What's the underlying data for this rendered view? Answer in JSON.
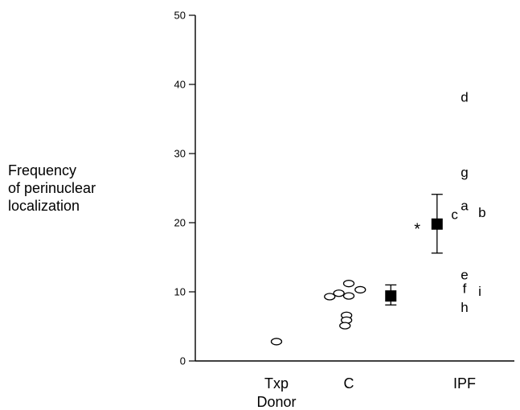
{
  "chart_data": {
    "type": "scatter",
    "ylabel_lines": [
      "Frequency",
      "of perinuclear",
      "localization"
    ],
    "ylim": [
      0,
      50
    ],
    "yticks": [
      0,
      10,
      20,
      30,
      40,
      50
    ],
    "ytick_labels": [
      "0",
      "10",
      "20",
      "30",
      "40",
      "50"
    ],
    "categories": [
      {
        "key": "txp",
        "lines": [
          "Txp",
          "Donor"
        ]
      },
      {
        "key": "c",
        "lines": [
          "C"
        ]
      },
      {
        "key": "ipf",
        "lines": [
          "IPF"
        ]
      }
    ],
    "txp_points": [
      {
        "cat": "txp",
        "offset": 0.0,
        "y": 2.8
      }
    ],
    "control_points": [
      {
        "cat": "c",
        "offset": -0.25,
        "y": 9.3
      },
      {
        "cat": "c",
        "offset": -0.13,
        "y": 9.8
      },
      {
        "cat": "c",
        "offset": 0.0,
        "y": 11.2
      },
      {
        "cat": "c",
        "offset": 0.0,
        "y": 9.4
      },
      {
        "cat": "c",
        "offset": 0.15,
        "y": 10.3
      },
      {
        "cat": "c",
        "offset": -0.03,
        "y": 6.6
      },
      {
        "cat": "c",
        "offset": -0.03,
        "y": 5.9
      },
      {
        "cat": "c",
        "offset": -0.05,
        "y": 5.1
      }
    ],
    "ipf_points": [
      {
        "label": "d",
        "offset": 0.0,
        "y": 38.2
      },
      {
        "label": "g",
        "offset": 0.0,
        "y": 27.3
      },
      {
        "label": "a",
        "offset": 0.0,
        "y": 22.5
      },
      {
        "label": "c",
        "offset": -0.13,
        "y": 21.2
      },
      {
        "label": "b",
        "offset": 0.23,
        "y": 21.5
      },
      {
        "label": "e",
        "offset": 0.0,
        "y": 12.5
      },
      {
        "label": "f",
        "offset": 0.0,
        "y": 10.5
      },
      {
        "label": "i",
        "offset": 0.2,
        "y": 10.1
      },
      {
        "label": "h",
        "offset": 0.0,
        "y": 7.8
      }
    ],
    "means": [
      {
        "cat": "c",
        "offset": 0.55,
        "mean": 9.4,
        "low": 8.1,
        "high": 11.0
      },
      {
        "cat": "ipf",
        "offset": -0.36,
        "mean": 19.8,
        "low": 15.6,
        "high": 24.1
      }
    ],
    "annotation": {
      "text": "*",
      "cat": "ipf",
      "offset": -0.62,
      "y": 19.7
    }
  }
}
